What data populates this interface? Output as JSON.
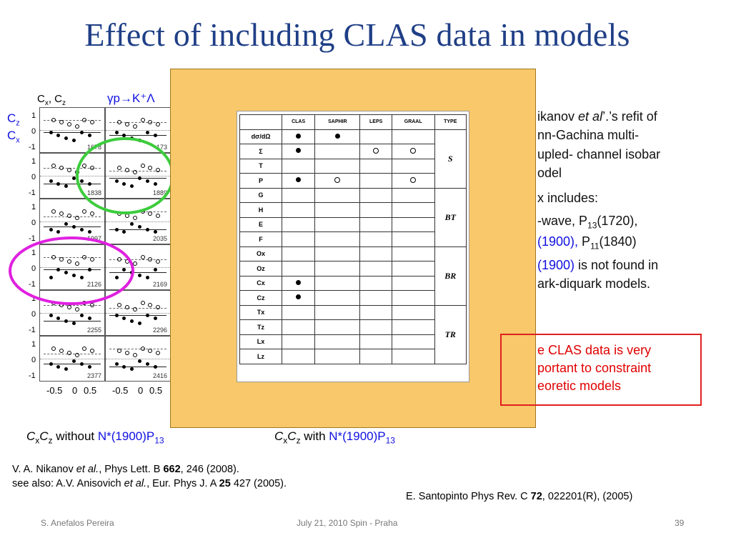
{
  "slide": {
    "title": "Effect of including CLAS data in models",
    "figure": {
      "header_left": "C",
      "header_mid": "x",
      "header_sep": ", C",
      "header_sub2": "z",
      "reaction": "γp→K⁺Λ",
      "legend_cz": "C",
      "legend_cz_sub": "z",
      "legend_cx": "C",
      "legend_cx_sub": "x",
      "y_ticks": [
        "1",
        "0",
        "-1"
      ],
      "x_ticks": [
        "-0.5",
        "0",
        "0.5"
      ],
      "x_ticks_right": [
        "-0.5",
        "0",
        "0.5"
      ],
      "energies_left": [
        "1678",
        "1838",
        "1997",
        "2126",
        "2255",
        "2377"
      ],
      "energies_right": [
        "173",
        "1889",
        "2035",
        "2169",
        "2296",
        "2416"
      ]
    },
    "table": {
      "headers": [
        "",
        "CLAS",
        "SAPHIR",
        "LEPS",
        "GRAAL",
        "TYPE"
      ],
      "rows": [
        {
          "obs": "dσ/dΩ",
          "clas": "dot",
          "saphir": "dot",
          "leps": "",
          "graal": ""
        },
        {
          "obs": "Σ",
          "clas": "dot",
          "saphir": "",
          "leps": "ring",
          "graal": "ring"
        },
        {
          "obs": "T",
          "clas": "",
          "saphir": "",
          "leps": "",
          "graal": ""
        },
        {
          "obs": "P",
          "clas": "dot",
          "saphir": "ring",
          "leps": "",
          "graal": "ring"
        },
        {
          "obs": "G",
          "clas": "",
          "saphir": "",
          "leps": "",
          "graal": ""
        },
        {
          "obs": "H",
          "clas": "",
          "saphir": "",
          "leps": "",
          "graal": ""
        },
        {
          "obs": "E",
          "clas": "",
          "saphir": "",
          "leps": "",
          "graal": ""
        },
        {
          "obs": "F",
          "clas": "",
          "saphir": "",
          "leps": "",
          "graal": ""
        },
        {
          "obs": "Ox",
          "clas": "",
          "saphir": "",
          "leps": "",
          "graal": ""
        },
        {
          "obs": "Oz",
          "clas": "",
          "saphir": "",
          "leps": "",
          "graal": ""
        },
        {
          "obs": "Cx",
          "clas": "dot",
          "saphir": "",
          "leps": "",
          "graal": ""
        },
        {
          "obs": "Cz",
          "clas": "dot",
          "saphir": "",
          "leps": "",
          "graal": ""
        },
        {
          "obs": "Tx",
          "clas": "",
          "saphir": "",
          "leps": "",
          "graal": ""
        },
        {
          "obs": "Tz",
          "clas": "",
          "saphir": "",
          "leps": "",
          "graal": ""
        },
        {
          "obs": "Lx",
          "clas": "",
          "saphir": "",
          "leps": "",
          "graal": ""
        },
        {
          "obs": "Lz",
          "clas": "",
          "saphir": "",
          "leps": "",
          "graal": ""
        }
      ],
      "types": [
        "S",
        "BT",
        "BR",
        "TR"
      ]
    },
    "right_text": {
      "line1_a": "ikanov ",
      "line1_em": "et al",
      "line1_b": "’.’s refit of",
      "line2": "nn-Gachina multi-",
      "line3": "upled- channel isobar",
      "line4": "odel",
      "line5": "x includes:",
      "line6_a": "-wave, P",
      "line6_sub": "13",
      "line6_b": "(1720),",
      "line7_blue": "(1900),",
      "line7_b": " P",
      "line7_sub": "11",
      "line7_c": "(1840)",
      "line8_blue": "(1900)",
      "line8_b": " is not found in",
      "line9": "ark-diquark models."
    },
    "red_box": {
      "line1": "e CLAS data is very",
      "line2": "portant to constraint",
      "line3": "eoretic models"
    },
    "captions": {
      "left_pre": "C",
      "left_x": "x",
      "left_C2": "C",
      "left_z": "z",
      "left_mid": " without ",
      "left_state": "N*(1900)P",
      "left_sub": "13",
      "right_pre": "C",
      "right_x": "x",
      "right_C2": "C",
      "right_z": "z",
      "right_mid": " with ",
      "right_state": "N*(1900)P",
      "right_sub": "13"
    },
    "references": {
      "ref1_a": "V. A. Nikanov ",
      "ref1_em": "et al.",
      "ref1_b": ", Phys Lett. B ",
      "ref1_bold": "662",
      "ref1_c": ", 246 (2008).",
      "ref2_a": "see also: A.V. Anisovich ",
      "ref2_em": "et al.",
      "ref2_b": ", Eur. Phys J. A ",
      "ref2_bold": "25",
      "ref2_c": " 427 (2005).",
      "ref3_a": "E. Santopinto  Phys Rev. C ",
      "ref3_bold": "72",
      "ref3_b": ", 022201(R), (2005)"
    },
    "footer": {
      "author": "S. Anefalos Pereira",
      "date": "July 21, 2010 Spin - Praha",
      "page": "39"
    },
    "colors": {
      "title": "#1f3f86",
      "accent_blue": "#1010e0",
      "red": "#e00000",
      "overlay": "#f8c86a",
      "green_circle": "#3ccc3c",
      "magenta_circle": "#e020e0"
    }
  }
}
